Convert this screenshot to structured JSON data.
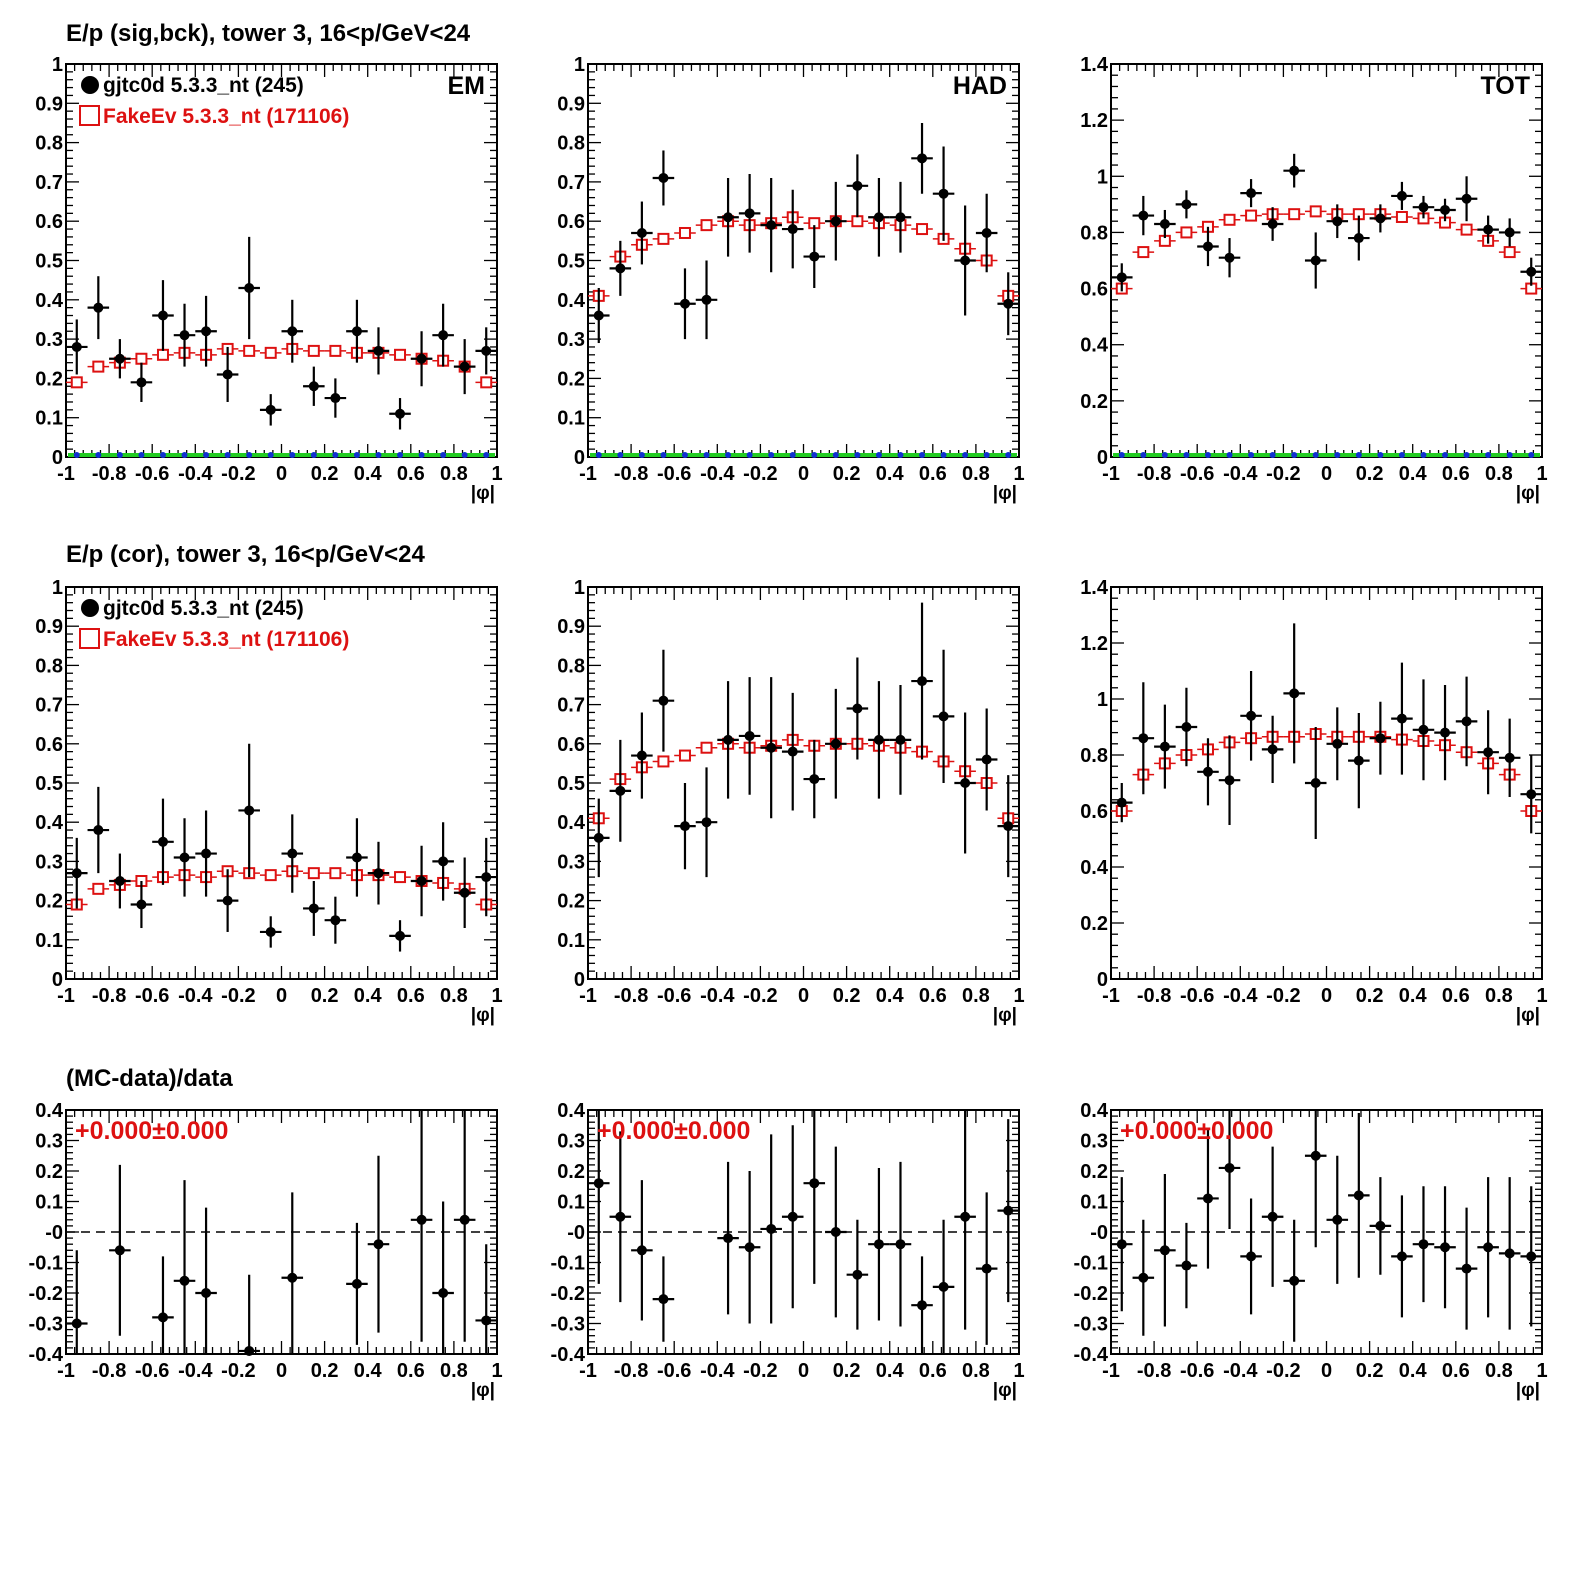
{
  "row_titles": [
    "E/p (sig,bck), tower 3, 16<p/GeV<24",
    "E/p (cor), tower 3, 16<p/GeV<24",
    "(MC-data)/data"
  ],
  "legend": {
    "data_label": "gjtc0d 5.3.3_nt (245)",
    "mc_label": "FakeEv 5.3.3_nt (171106)"
  },
  "colors": {
    "data": "#000000",
    "mc": "#dd1111",
    "bkg_blue": "#1030d0",
    "bkg_green": "#22cc22"
  },
  "x_axis_label": "|φ|",
  "ratio_label": "+0.000±0.000",
  "chart_data": [
    {
      "id": "ep-em",
      "type": "scatter",
      "panel_label": "EM",
      "show_legend": true,
      "xlim": [
        -1,
        1
      ],
      "ylim": [
        0,
        1
      ],
      "x_ticks": [
        "-1",
        "-0.8",
        "-0.6",
        "-0.4",
        "-0.2",
        "0",
        "0.2",
        "0.4",
        "0.6",
        "0.8",
        "1"
      ],
      "y_ticks": [
        "0",
        "0.1",
        "0.2",
        "0.3",
        "0.4",
        "0.5",
        "0.6",
        "0.7",
        "0.8",
        "0.9",
        "1"
      ],
      "show_background_zero": true,
      "data": {
        "x": [
          -0.95,
          -0.85,
          -0.75,
          -0.65,
          -0.55,
          -0.45,
          -0.35,
          -0.25,
          -0.15,
          -0.05,
          0.05,
          0.15,
          0.25,
          0.35,
          0.45,
          0.55,
          0.65,
          0.75,
          0.85,
          0.95
        ],
        "y": [
          0.28,
          0.38,
          0.25,
          0.19,
          0.36,
          0.31,
          0.32,
          0.21,
          0.43,
          0.12,
          0.32,
          0.18,
          0.15,
          0.32,
          0.27,
          0.11,
          0.25,
          0.31,
          0.23,
          0.27
        ],
        "err": [
          0.07,
          0.08,
          0.05,
          0.05,
          0.09,
          0.08,
          0.09,
          0.07,
          0.13,
          0.04,
          0.08,
          0.05,
          0.05,
          0.08,
          0.06,
          0.04,
          0.07,
          0.08,
          0.07,
          0.06
        ]
      },
      "mc": {
        "x": [
          -0.95,
          -0.85,
          -0.75,
          -0.65,
          -0.55,
          -0.45,
          -0.35,
          -0.25,
          -0.15,
          -0.05,
          0.05,
          0.15,
          0.25,
          0.35,
          0.45,
          0.55,
          0.65,
          0.75,
          0.85,
          0.95
        ],
        "y": [
          0.19,
          0.23,
          0.24,
          0.25,
          0.26,
          0.265,
          0.26,
          0.275,
          0.27,
          0.265,
          0.275,
          0.27,
          0.27,
          0.265,
          0.265,
          0.26,
          0.25,
          0.245,
          0.23,
          0.19
        ]
      }
    },
    {
      "id": "ep-had",
      "type": "scatter",
      "panel_label": "HAD",
      "show_legend": false,
      "xlim": [
        -1,
        1
      ],
      "ylim": [
        0,
        1
      ],
      "x_ticks": [
        "-1",
        "-0.8",
        "-0.6",
        "-0.4",
        "-0.2",
        "0",
        "0.2",
        "0.4",
        "0.6",
        "0.8",
        "1"
      ],
      "y_ticks": [
        "0",
        "0.1",
        "0.2",
        "0.3",
        "0.4",
        "0.5",
        "0.6",
        "0.7",
        "0.8",
        "0.9",
        "1"
      ],
      "show_background_zero": true,
      "data": {
        "x": [
          -0.95,
          -0.85,
          -0.75,
          -0.65,
          -0.55,
          -0.45,
          -0.35,
          -0.25,
          -0.15,
          -0.05,
          0.05,
          0.15,
          0.25,
          0.35,
          0.45,
          0.55,
          0.65,
          0.75,
          0.85,
          0.95
        ],
        "y": [
          0.36,
          0.48,
          0.57,
          0.71,
          0.39,
          0.4,
          0.61,
          0.62,
          0.59,
          0.58,
          0.51,
          0.6,
          0.69,
          0.61,
          0.61,
          0.76,
          0.67,
          0.5,
          0.57,
          0.39
        ],
        "err": [
          0.07,
          0.07,
          0.08,
          0.07,
          0.09,
          0.1,
          0.1,
          0.1,
          0.12,
          0.1,
          0.08,
          0.1,
          0.08,
          0.1,
          0.09,
          0.09,
          0.12,
          0.14,
          0.1,
          0.08
        ]
      },
      "mc": {
        "x": [
          -0.95,
          -0.85,
          -0.75,
          -0.65,
          -0.55,
          -0.45,
          -0.35,
          -0.25,
          -0.15,
          -0.05,
          0.05,
          0.15,
          0.25,
          0.35,
          0.45,
          0.55,
          0.65,
          0.75,
          0.85,
          0.95
        ],
        "y": [
          0.41,
          0.51,
          0.54,
          0.555,
          0.57,
          0.59,
          0.6,
          0.59,
          0.595,
          0.61,
          0.595,
          0.6,
          0.6,
          0.595,
          0.59,
          0.58,
          0.555,
          0.53,
          0.5,
          0.41
        ]
      }
    },
    {
      "id": "ep-tot",
      "type": "scatter",
      "panel_label": "TOT",
      "show_legend": false,
      "xlim": [
        -1,
        1
      ],
      "ylim": [
        0,
        1.4
      ],
      "x_ticks": [
        "-1",
        "-0.8",
        "-0.6",
        "-0.4",
        "-0.2",
        "0",
        "0.2",
        "0.4",
        "0.6",
        "0.8",
        "1"
      ],
      "y_ticks": [
        "0",
        "0.2",
        "0.4",
        "0.6",
        "0.8",
        "1",
        "1.2",
        "1.4"
      ],
      "show_background_zero": true,
      "data": {
        "x": [
          -0.95,
          -0.85,
          -0.75,
          -0.65,
          -0.55,
          -0.45,
          -0.35,
          -0.25,
          -0.15,
          -0.05,
          0.05,
          0.15,
          0.25,
          0.35,
          0.45,
          0.55,
          0.65,
          0.75,
          0.85,
          0.95
        ],
        "y": [
          0.64,
          0.86,
          0.83,
          0.9,
          0.75,
          0.71,
          0.94,
          0.83,
          1.02,
          0.7,
          0.84,
          0.78,
          0.85,
          0.93,
          0.89,
          0.88,
          0.92,
          0.81,
          0.8,
          0.66
        ],
        "err": [
          0.05,
          0.07,
          0.05,
          0.05,
          0.07,
          0.07,
          0.05,
          0.06,
          0.06,
          0.1,
          0.06,
          0.08,
          0.05,
          0.05,
          0.04,
          0.04,
          0.08,
          0.05,
          0.05,
          0.05
        ]
      },
      "mc": {
        "x": [
          -0.95,
          -0.85,
          -0.75,
          -0.65,
          -0.55,
          -0.45,
          -0.35,
          -0.25,
          -0.15,
          -0.05,
          0.05,
          0.15,
          0.25,
          0.35,
          0.45,
          0.55,
          0.65,
          0.75,
          0.85,
          0.95
        ],
        "y": [
          0.6,
          0.73,
          0.77,
          0.8,
          0.82,
          0.845,
          0.86,
          0.865,
          0.865,
          0.875,
          0.865,
          0.865,
          0.865,
          0.855,
          0.85,
          0.835,
          0.81,
          0.77,
          0.73,
          0.6
        ]
      }
    },
    {
      "id": "cor-em",
      "type": "scatter",
      "panel_label": "",
      "show_legend": true,
      "xlim": [
        -1,
        1
      ],
      "ylim": [
        0,
        1
      ],
      "x_ticks": [
        "-1",
        "-0.8",
        "-0.6",
        "-0.4",
        "-0.2",
        "0",
        "0.2",
        "0.4",
        "0.6",
        "0.8",
        "1"
      ],
      "y_ticks": [
        "0",
        "0.1",
        "0.2",
        "0.3",
        "0.4",
        "0.5",
        "0.6",
        "0.7",
        "0.8",
        "0.9",
        "1"
      ],
      "show_background_zero": false,
      "data": {
        "x": [
          -0.95,
          -0.85,
          -0.75,
          -0.65,
          -0.55,
          -0.45,
          -0.35,
          -0.25,
          -0.15,
          -0.05,
          0.05,
          0.15,
          0.25,
          0.35,
          0.45,
          0.55,
          0.65,
          0.75,
          0.85,
          0.95
        ],
        "y": [
          0.27,
          0.38,
          0.25,
          0.19,
          0.35,
          0.31,
          0.32,
          0.2,
          0.43,
          0.12,
          0.32,
          0.18,
          0.15,
          0.31,
          0.27,
          0.11,
          0.25,
          0.3,
          0.22,
          0.26
        ],
        "err": [
          0.09,
          0.11,
          0.07,
          0.06,
          0.11,
          0.1,
          0.11,
          0.08,
          0.17,
          0.04,
          0.1,
          0.07,
          0.06,
          0.1,
          0.08,
          0.04,
          0.09,
          0.1,
          0.09,
          0.1
        ]
      },
      "mc": {
        "x": [
          -0.95,
          -0.85,
          -0.75,
          -0.65,
          -0.55,
          -0.45,
          -0.35,
          -0.25,
          -0.15,
          -0.05,
          0.05,
          0.15,
          0.25,
          0.35,
          0.45,
          0.55,
          0.65,
          0.75,
          0.85,
          0.95
        ],
        "y": [
          0.19,
          0.23,
          0.24,
          0.25,
          0.26,
          0.265,
          0.26,
          0.275,
          0.27,
          0.265,
          0.275,
          0.27,
          0.27,
          0.265,
          0.265,
          0.26,
          0.25,
          0.245,
          0.23,
          0.19
        ]
      }
    },
    {
      "id": "cor-had",
      "type": "scatter",
      "panel_label": "",
      "show_legend": false,
      "xlim": [
        -1,
        1
      ],
      "ylim": [
        0,
        1
      ],
      "x_ticks": [
        "-1",
        "-0.8",
        "-0.6",
        "-0.4",
        "-0.2",
        "0",
        "0.2",
        "0.4",
        "0.6",
        "0.8",
        "1"
      ],
      "y_ticks": [
        "0",
        "0.1",
        "0.2",
        "0.3",
        "0.4",
        "0.5",
        "0.6",
        "0.7",
        "0.8",
        "0.9",
        "1"
      ],
      "show_background_zero": false,
      "data": {
        "x": [
          -0.95,
          -0.85,
          -0.75,
          -0.65,
          -0.55,
          -0.45,
          -0.35,
          -0.25,
          -0.15,
          -0.05,
          0.05,
          0.15,
          0.25,
          0.35,
          0.45,
          0.55,
          0.65,
          0.75,
          0.85,
          0.95
        ],
        "y": [
          0.36,
          0.48,
          0.57,
          0.71,
          0.39,
          0.4,
          0.61,
          0.62,
          0.59,
          0.58,
          0.51,
          0.6,
          0.69,
          0.61,
          0.61,
          0.76,
          0.67,
          0.5,
          0.56,
          0.39
        ],
        "err": [
          0.1,
          0.13,
          0.11,
          0.13,
          0.11,
          0.14,
          0.15,
          0.15,
          0.18,
          0.15,
          0.1,
          0.14,
          0.13,
          0.15,
          0.14,
          0.2,
          0.17,
          0.18,
          0.13,
          0.13
        ]
      },
      "mc": {
        "x": [
          -0.95,
          -0.85,
          -0.75,
          -0.65,
          -0.55,
          -0.45,
          -0.35,
          -0.25,
          -0.15,
          -0.05,
          0.05,
          0.15,
          0.25,
          0.35,
          0.45,
          0.55,
          0.65,
          0.75,
          0.85,
          0.95
        ],
        "y": [
          0.41,
          0.51,
          0.54,
          0.555,
          0.57,
          0.59,
          0.6,
          0.59,
          0.595,
          0.61,
          0.595,
          0.6,
          0.6,
          0.595,
          0.59,
          0.58,
          0.555,
          0.53,
          0.5,
          0.41
        ]
      }
    },
    {
      "id": "cor-tot",
      "type": "scatter",
      "panel_label": "",
      "show_legend": false,
      "xlim": [
        -1,
        1
      ],
      "ylim": [
        0,
        1.4
      ],
      "x_ticks": [
        "-1",
        "-0.8",
        "-0.6",
        "-0.4",
        "-0.2",
        "0",
        "0.2",
        "0.4",
        "0.6",
        "0.8",
        "1"
      ],
      "y_ticks": [
        "0",
        "0.2",
        "0.4",
        "0.6",
        "0.8",
        "1",
        "1.2",
        "1.4"
      ],
      "show_background_zero": false,
      "data": {
        "x": [
          -0.95,
          -0.85,
          -0.75,
          -0.65,
          -0.55,
          -0.45,
          -0.35,
          -0.25,
          -0.15,
          -0.05,
          0.05,
          0.15,
          0.25,
          0.35,
          0.45,
          0.55,
          0.65,
          0.75,
          0.85,
          0.95
        ],
        "y": [
          0.63,
          0.86,
          0.83,
          0.9,
          0.74,
          0.71,
          0.94,
          0.82,
          1.02,
          0.7,
          0.84,
          0.78,
          0.86,
          0.93,
          0.89,
          0.88,
          0.92,
          0.81,
          0.79,
          0.66
        ],
        "err": [
          0.07,
          0.2,
          0.15,
          0.14,
          0.12,
          0.16,
          0.16,
          0.12,
          0.25,
          0.2,
          0.13,
          0.17,
          0.13,
          0.2,
          0.18,
          0.17,
          0.16,
          0.15,
          0.14,
          0.14
        ]
      },
      "mc": {
        "x": [
          -0.95,
          -0.85,
          -0.75,
          -0.65,
          -0.55,
          -0.45,
          -0.35,
          -0.25,
          -0.15,
          -0.05,
          0.05,
          0.15,
          0.25,
          0.35,
          0.45,
          0.55,
          0.65,
          0.75,
          0.85,
          0.95
        ],
        "y": [
          0.6,
          0.73,
          0.77,
          0.8,
          0.82,
          0.845,
          0.86,
          0.865,
          0.865,
          0.875,
          0.865,
          0.865,
          0.865,
          0.855,
          0.85,
          0.835,
          0.81,
          0.77,
          0.73,
          0.6
        ]
      }
    },
    {
      "id": "ratio-em",
      "type": "scatter",
      "panel_label": "",
      "show_legend": false,
      "ratio": true,
      "xlim": [
        -1,
        1
      ],
      "ylim": [
        -0.4,
        0.4
      ],
      "x_ticks": [
        "-1",
        "-0.8",
        "-0.6",
        "-0.4",
        "-0.2",
        "0",
        "0.2",
        "0.4",
        "0.6",
        "0.8",
        "1"
      ],
      "y_ticks": [
        "-0.4",
        "-0.3",
        "-0.2",
        "-0.1",
        "-0",
        "0.1",
        "0.2",
        "0.3",
        "0.4"
      ],
      "data": {
        "x": [
          -0.95,
          -0.75,
          -0.55,
          -0.45,
          -0.35,
          -0.15,
          0.05,
          0.35,
          0.45,
          0.65,
          0.75,
          0.85,
          0.95
        ],
        "y": [
          -0.3,
          -0.06,
          -0.28,
          -0.16,
          -0.2,
          -0.39,
          -0.15,
          -0.17,
          -0.04,
          0.04,
          -0.2,
          0.04,
          -0.29
        ],
        "err": [
          0.24,
          0.28,
          0.2,
          0.33,
          0.28,
          0.25,
          0.28,
          0.2,
          0.29,
          0.4,
          0.3,
          0.4,
          0.25
        ]
      }
    },
    {
      "id": "ratio-had",
      "type": "scatter",
      "panel_label": "",
      "show_legend": false,
      "ratio": true,
      "xlim": [
        -1,
        1
      ],
      "ylim": [
        -0.4,
        0.4
      ],
      "x_ticks": [
        "-1",
        "-0.8",
        "-0.6",
        "-0.4",
        "-0.2",
        "0",
        "0.2",
        "0.4",
        "0.6",
        "0.8",
        "1"
      ],
      "y_ticks": [
        "-0.4",
        "-0.3",
        "-0.2",
        "-0.1",
        "-0",
        "0.1",
        "0.2",
        "0.3",
        "0.4"
      ],
      "data": {
        "x": [
          -0.95,
          -0.85,
          -0.75,
          -0.65,
          -0.35,
          -0.25,
          -0.15,
          -0.05,
          0.05,
          0.15,
          0.25,
          0.35,
          0.45,
          0.55,
          0.65,
          0.75,
          0.85,
          0.95
        ],
        "y": [
          0.16,
          0.05,
          -0.06,
          -0.22,
          -0.02,
          -0.05,
          0.01,
          0.05,
          0.16,
          0.0,
          -0.14,
          -0.04,
          -0.04,
          -0.24,
          -0.18,
          0.05,
          -0.12,
          0.07
        ],
        "err": [
          0.33,
          0.28,
          0.23,
          0.14,
          0.25,
          0.25,
          0.31,
          0.3,
          0.33,
          0.28,
          0.18,
          0.25,
          0.27,
          0.16,
          0.22,
          0.37,
          0.25,
          0.3
        ]
      }
    },
    {
      "id": "ratio-tot",
      "type": "scatter",
      "panel_label": "",
      "show_legend": false,
      "ratio": true,
      "xlim": [
        -1,
        1
      ],
      "ylim": [
        -0.4,
        0.4
      ],
      "x_ticks": [
        "-1",
        "-0.8",
        "-0.6",
        "-0.4",
        "-0.2",
        "0",
        "0.2",
        "0.4",
        "0.6",
        "0.8",
        "1"
      ],
      "y_ticks": [
        "-0.4",
        "-0.3",
        "-0.2",
        "-0.1",
        "-0",
        "0.1",
        "0.2",
        "0.3",
        "0.4"
      ],
      "data": {
        "x": [
          -0.95,
          -0.85,
          -0.75,
          -0.65,
          -0.55,
          -0.45,
          -0.35,
          -0.25,
          -0.15,
          -0.05,
          0.05,
          0.15,
          0.25,
          0.35,
          0.45,
          0.55,
          0.65,
          0.75,
          0.85,
          0.95
        ],
        "y": [
          -0.04,
          -0.15,
          -0.06,
          -0.11,
          0.11,
          0.21,
          -0.08,
          0.05,
          -0.16,
          0.25,
          0.04,
          0.12,
          0.02,
          -0.08,
          -0.04,
          -0.05,
          -0.12,
          -0.05,
          -0.07,
          -0.08
        ],
        "err": [
          0.22,
          0.19,
          0.25,
          0.14,
          0.23,
          0.2,
          0.19,
          0.23,
          0.2,
          0.3,
          0.21,
          0.27,
          0.16,
          0.2,
          0.19,
          0.2,
          0.2,
          0.23,
          0.25,
          0.23
        ]
      }
    }
  ]
}
